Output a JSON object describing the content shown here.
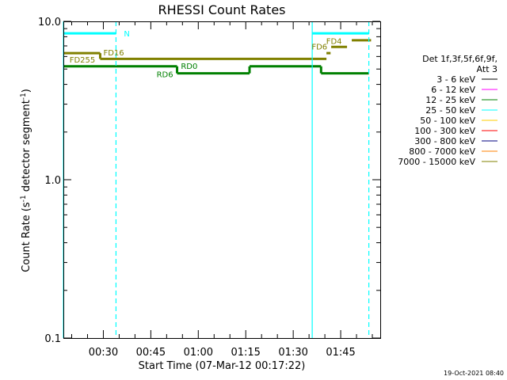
{
  "chart_data": {
    "type": "line",
    "title": "RHESSI Count Rates",
    "xlabel": "Start Time (07-Mar-12 00:17:22)",
    "ylabel_parts": [
      "Count Rate (s",
      "-1",
      " detector segment",
      "-1",
      ")"
    ],
    "ylabel": "Count Rate (s-1 detector segment-1)",
    "yscale": "log",
    "ylim": [
      0.1,
      10.0
    ],
    "yticks": [
      {
        "value": 10.0,
        "label": "10.0"
      },
      {
        "value": 1.0,
        "label": "1.0"
      },
      {
        "value": 0.1,
        "label": "0.1"
      }
    ],
    "xlim_minutes": [
      17.37,
      117.5
    ],
    "xticks": [
      {
        "value": 30,
        "label": "00:30"
      },
      {
        "value": 45,
        "label": "00:45"
      },
      {
        "value": 60,
        "label": "01:00"
      },
      {
        "value": 75,
        "label": "01:15"
      },
      {
        "value": 90,
        "label": "01:30"
      },
      {
        "value": 105,
        "label": "01:45"
      }
    ],
    "series": [
      {
        "name": "3 - 6 keV",
        "color": "#000000",
        "segments": []
      },
      {
        "name": "6 - 12 keV",
        "color": "#ff00ff",
        "segments": []
      },
      {
        "name": "12 - 25 keV",
        "color": "#008000",
        "segments": [
          {
            "x": [
              17.37,
              53.3
            ],
            "y": 5.2
          },
          {
            "x": 53.3,
            "y": [
              5.2,
              4.7
            ]
          },
          {
            "x": [
              53.3,
              76.2
            ],
            "y": 4.7
          },
          {
            "x": 76.2,
            "y": [
              4.7,
              5.2
            ]
          },
          {
            "x": [
              76.2,
              98.8
            ],
            "y": 5.2
          },
          {
            "x": 98.8,
            "y": [
              5.2,
              4.7
            ]
          },
          {
            "x": [
              98.8,
              113.9
            ],
            "y": 4.7
          }
        ]
      },
      {
        "name": "25 - 50 keV",
        "color": "#00ffff",
        "segments": [
          {
            "x": [
              17.37,
              34.0
            ],
            "y": 8.4
          },
          {
            "x": [
              96.0,
              113.9
            ],
            "y": 8.4
          }
        ]
      },
      {
        "name": "50 - 100 keV",
        "color": "#ffcc00",
        "segments": []
      },
      {
        "name": "100 - 300 keV",
        "color": "#ff0000",
        "segments": []
      },
      {
        "name": "300 - 800 keV",
        "color": "#000080",
        "segments": []
      },
      {
        "name": "800 - 7000 keV",
        "color": "#ff8000",
        "segments": []
      },
      {
        "name": "7000 - 15000 keV",
        "color": "#808000",
        "segments": [
          {
            "x": [
              17.37,
              29.0
            ],
            "y": 6.3
          },
          {
            "x": 29.0,
            "y": [
              6.3,
              5.8
            ]
          },
          {
            "x": [
              29.0,
              100.5
            ],
            "y": 5.8
          },
          {
            "x": [
              100.5,
              101.8
            ],
            "y": 6.3
          },
          {
            "x": [
              102.0,
              107.0
            ],
            "y": 6.9
          },
          {
            "x": [
              108.5,
              114.6
            ],
            "y": 7.6
          }
        ]
      }
    ],
    "vertical_lines": [
      {
        "x": 17.37,
        "style": "solid",
        "color": "#00ffff"
      },
      {
        "x": 34.0,
        "style": "dashed",
        "color": "#00ffff"
      },
      {
        "x": 96.0,
        "style": "solid",
        "color": "#00ffff"
      },
      {
        "x": 113.9,
        "style": "dashed",
        "color": "#00ffff"
      }
    ],
    "annotations": [
      {
        "text": "N",
        "x": 36.5,
        "y": 8.4,
        "color": "#00ffff"
      },
      {
        "text": "FD16",
        "x": 30.0,
        "y": 6.4,
        "color": "#808000"
      },
      {
        "text": "FD255",
        "x": 19.3,
        "y": 5.75,
        "color": "#808000"
      },
      {
        "text": "RD0",
        "x": 54.5,
        "y": 5.25,
        "color": "#008000"
      },
      {
        "text": "RD6",
        "x": 46.8,
        "y": 4.65,
        "color": "#008000"
      },
      {
        "text": "FD6",
        "x": 95.8,
        "y": 6.95,
        "color": "#808000"
      },
      {
        "text": "FD4",
        "x": 100.4,
        "y": 7.55,
        "color": "#808000"
      }
    ],
    "legend": {
      "placement": "right",
      "header": [
        "Det 1f,3f,5f,6f,9f,",
        "Att 3"
      ]
    },
    "grid": false
  },
  "footer_timestamp": "19-Oct-2021 08:40"
}
